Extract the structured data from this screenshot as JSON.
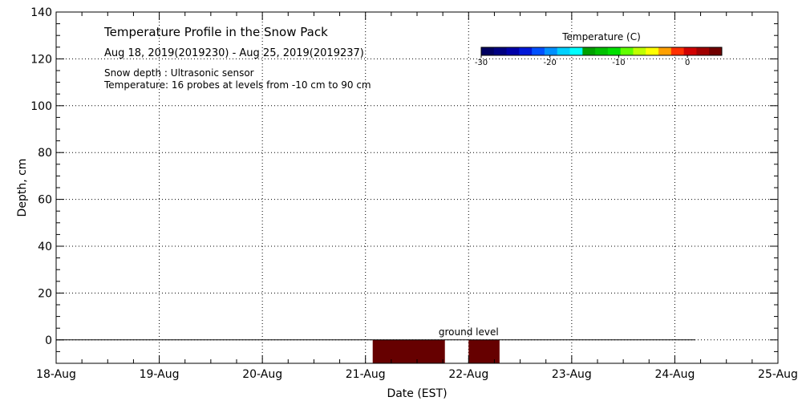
{
  "chart_data": {
    "type": "heatmap",
    "title": "Temperature Profile in the Snow Pack",
    "subtitle": "Aug 18, 2019(2019230) - Aug 25, 2019(2019237)",
    "notes": [
      "Snow depth : Ultrasonic sensor",
      "Temperature: 16 probes at levels from -10 cm to 90 cm"
    ],
    "xlabel": "Date (EST)",
    "ylabel": "Depth, cm",
    "x_ticks": [
      "18-Aug",
      "19-Aug",
      "20-Aug",
      "21-Aug",
      "22-Aug",
      "23-Aug",
      "24-Aug",
      "25-Aug"
    ],
    "x_range_days": [
      0,
      7
    ],
    "ylim": [
      -10,
      140
    ],
    "y_ticks": [
      0,
      20,
      40,
      60,
      80,
      100,
      120,
      140
    ],
    "grid": true,
    "ground_level": {
      "label": "ground level",
      "depth": 0
    },
    "temperature_blocks": [
      {
        "start_day": 3.07,
        "end_day": 3.77,
        "depth_top": 0,
        "depth_bottom": -10,
        "color": "#660000"
      },
      {
        "start_day": 4.0,
        "end_day": 4.3,
        "depth_top": 0,
        "depth_bottom": -10,
        "color": "#660000"
      }
    ],
    "colorbar": {
      "title": "Temperature (C)",
      "range": [
        -30,
        5
      ],
      "ticks": [
        -30,
        -20,
        -10,
        0
      ],
      "colors": [
        "#000060",
        "#000080",
        "#0000a8",
        "#0018d8",
        "#0050ff",
        "#0090ff",
        "#00d0ff",
        "#00ffff",
        "#00a000",
        "#00c000",
        "#00e000",
        "#60ff00",
        "#c0ff00",
        "#ffff00",
        "#ffa000",
        "#ff3000",
        "#d00000",
        "#a00000",
        "#700000"
      ]
    }
  }
}
